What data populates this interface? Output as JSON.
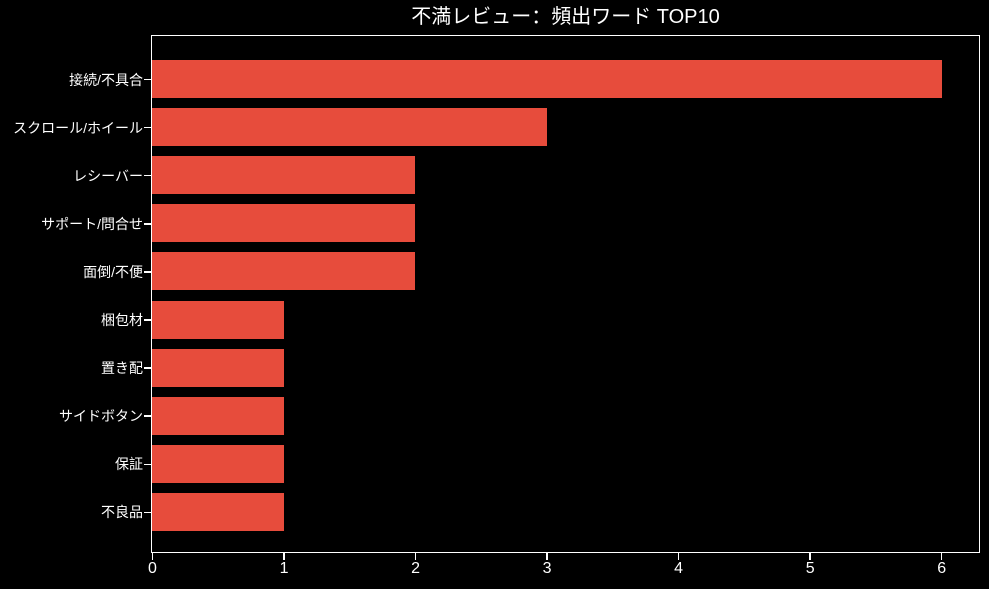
{
  "chart_data": {
    "type": "bar",
    "orientation": "horizontal",
    "title": "不満レビュー：頻出ワード TOP10",
    "categories": [
      "接続/不具合",
      "スクロール/ホイール",
      "レシーバー",
      "サポート/問合せ",
      "面倒/不便",
      "梱包材",
      "置き配",
      "サイドボタン",
      "保証",
      "不良品"
    ],
    "values": [
      6,
      3,
      2,
      2,
      2,
      1,
      1,
      1,
      1,
      1
    ],
    "xlabel": "",
    "ylabel": "",
    "xtick_labels": [
      "0",
      "1",
      "2",
      "3",
      "4",
      "5",
      "6"
    ],
    "xtick_values": [
      0,
      1,
      2,
      3,
      4,
      5,
      6
    ],
    "xlim": [
      0,
      6.28
    ],
    "grid": false,
    "legend": "none",
    "colors": {
      "bar": "#e74c3c",
      "background": "#000000",
      "text": "#ffffff",
      "spine": "#ffffff"
    }
  }
}
